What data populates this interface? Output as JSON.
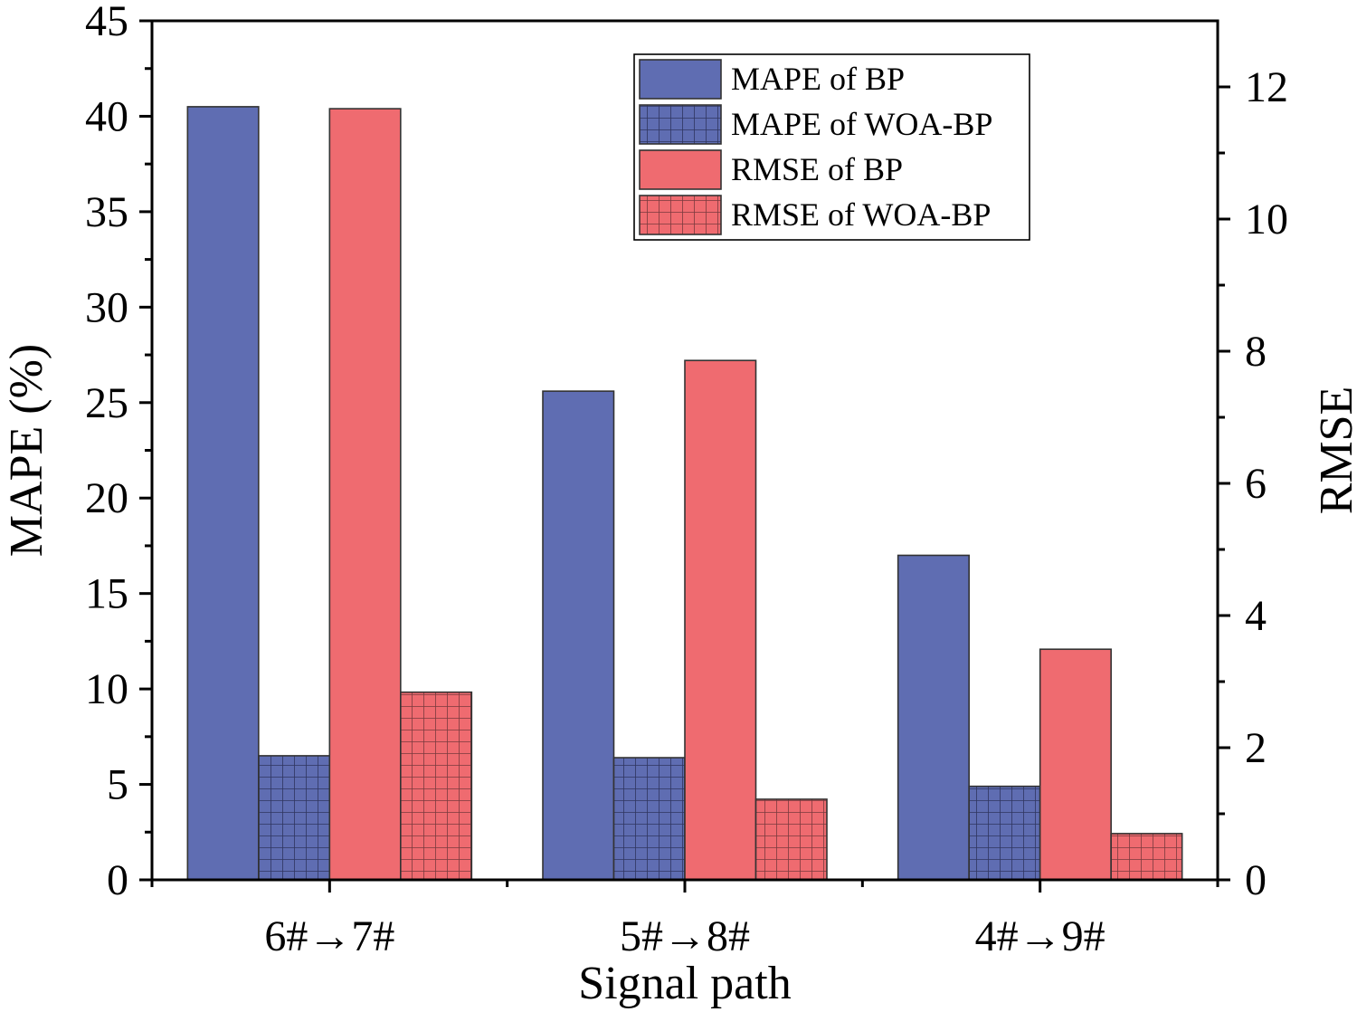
{
  "chart_data": {
    "type": "bar",
    "xlabel": "Signal path",
    "ylabel_left": "MAPE (%)",
    "ylabel_right": "RMSE",
    "categories": [
      "6#→7#",
      "5#→8#",
      "4#→9#"
    ],
    "ylim_left": [
      0,
      45
    ],
    "yticks_left": [
      0,
      5,
      10,
      15,
      20,
      25,
      30,
      35,
      40,
      45
    ],
    "ylim_right": [
      0,
      13
    ],
    "yticks_right": [
      0,
      2,
      4,
      6,
      8,
      10,
      12
    ],
    "series": [
      {
        "name": "MAPE of BP",
        "axis": "left",
        "color": "#5f6db2",
        "pattern": "solid",
        "values": [
          40.5,
          25.6,
          17.0
        ]
      },
      {
        "name": "MAPE of WOA-BP",
        "axis": "left",
        "color": "#5f6db2",
        "pattern": "grid",
        "values": [
          6.5,
          6.4,
          4.9
        ]
      },
      {
        "name": "RMSE of BP",
        "axis": "right",
        "color": "#ef6b70",
        "pattern": "solid",
        "values": [
          11.67,
          7.86,
          3.49
        ]
      },
      {
        "name": "RMSE of WOA-BP",
        "axis": "right",
        "color": "#ef6b70",
        "pattern": "grid",
        "values": [
          2.84,
          1.22,
          0.7
        ]
      }
    ],
    "legend_position": "top-right",
    "grid": false
  }
}
